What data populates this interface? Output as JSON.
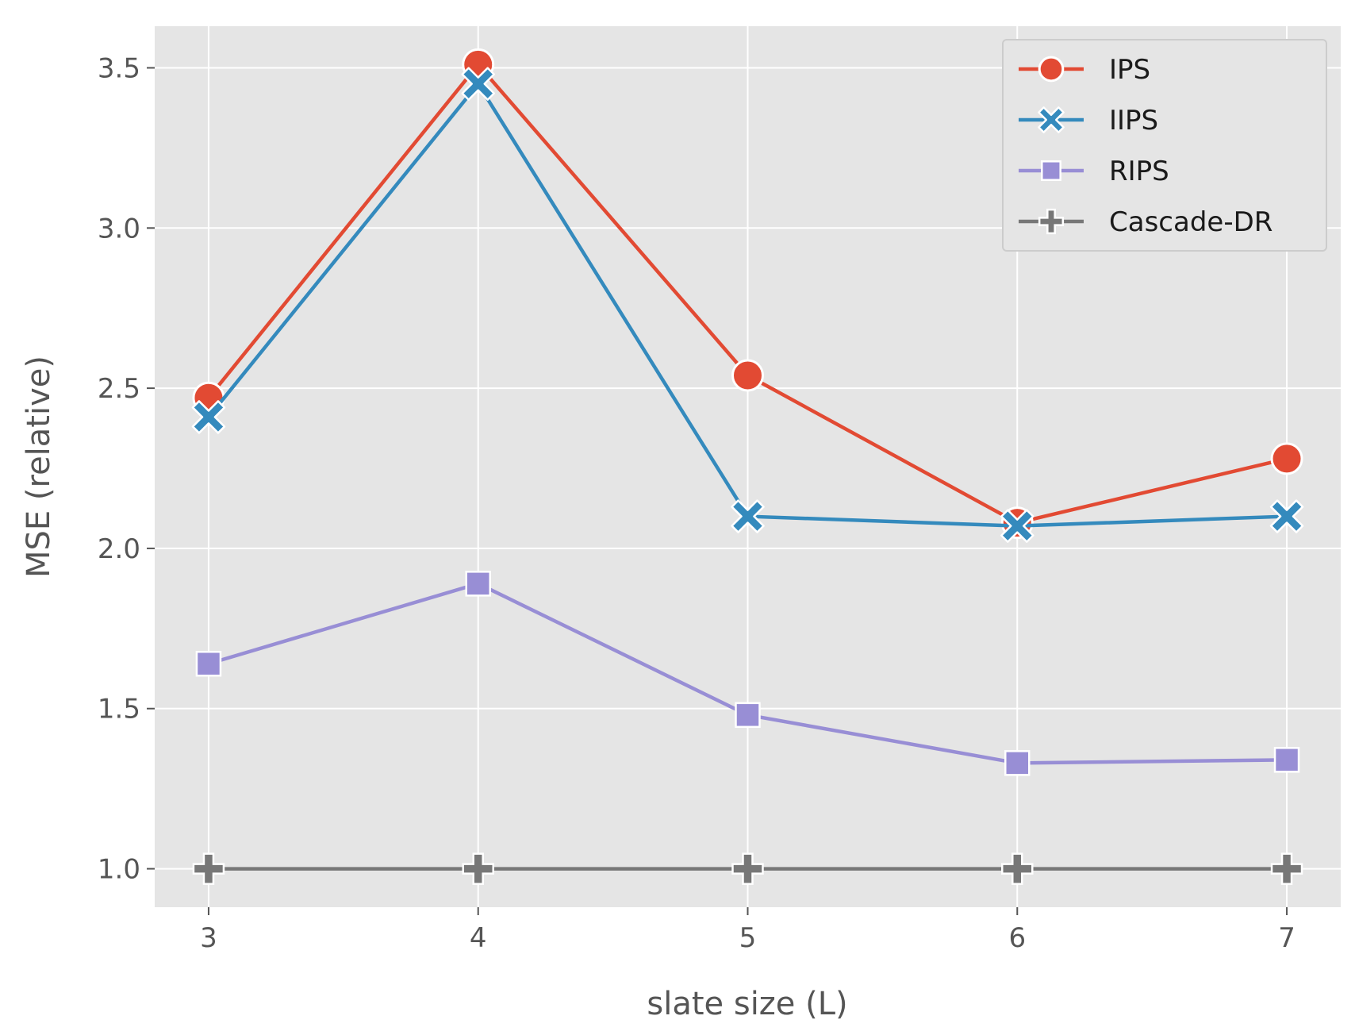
{
  "chart_data": {
    "type": "line",
    "x": [
      3,
      4,
      5,
      6,
      7
    ],
    "xlabel": "slate size (L)",
    "ylabel": "MSE (relative)",
    "xlim": [
      2.8,
      7.2
    ],
    "ylim": [
      0.88,
      3.63
    ],
    "xticks": [
      "3",
      "4",
      "5",
      "6",
      "7"
    ],
    "yticks": [
      "1.0",
      "1.5",
      "2.0",
      "2.5",
      "3.0",
      "3.5"
    ],
    "grid": true,
    "legend_position": "top-right",
    "series": [
      {
        "name": "IPS",
        "color": "#E24A33",
        "marker": "circle",
        "values": [
          2.47,
          3.51,
          2.54,
          2.08,
          2.28
        ]
      },
      {
        "name": "IIPS",
        "color": "#348ABD",
        "marker": "x",
        "values": [
          2.41,
          3.45,
          2.1,
          2.07,
          2.1
        ]
      },
      {
        "name": "RIPS",
        "color": "#988ED5",
        "marker": "square",
        "values": [
          1.64,
          1.89,
          1.48,
          1.33,
          1.34
        ]
      },
      {
        "name": "Cascade-DR",
        "color": "#777777",
        "marker": "plus",
        "values": [
          1.0,
          1.0,
          1.0,
          1.0,
          1.0
        ]
      }
    ]
  }
}
